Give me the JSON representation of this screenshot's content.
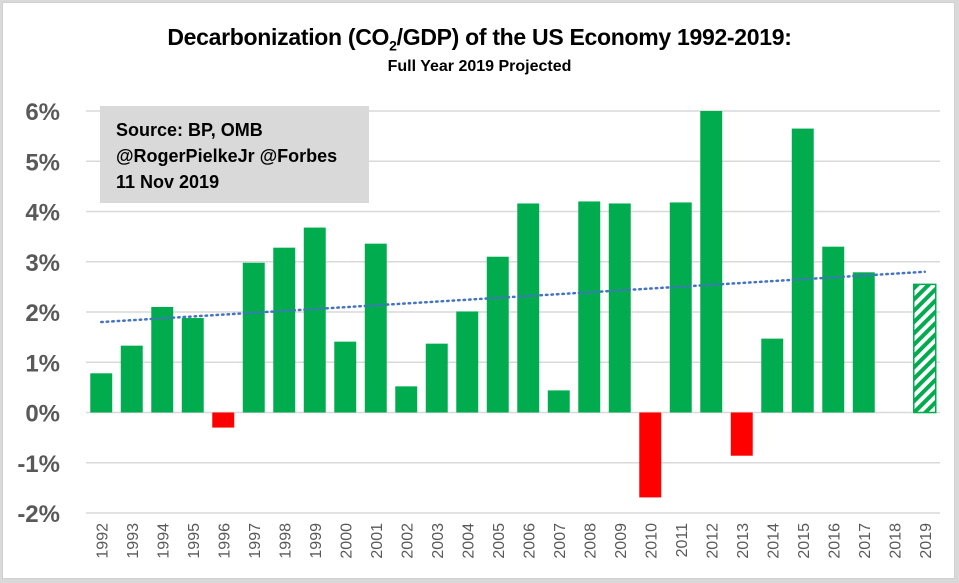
{
  "chart_data": {
    "type": "bar",
    "title": "Decarbonization (CO2/GDP) of the US Economy 1992-2019:",
    "title_parts": {
      "pre": "Decarbonization (CO",
      "sub": "2",
      "post": "/GDP) of the US Economy 1992-2019:"
    },
    "subtitle": "Full Year 2019 Projected",
    "xlabel": "",
    "ylabel": "",
    "ylim": [
      -2,
      6
    ],
    "yticks": [
      -2,
      -1,
      0,
      1,
      2,
      3,
      4,
      5,
      6
    ],
    "ytick_labels": [
      "-2%",
      "-1%",
      "0%",
      "1%",
      "2%",
      "3%",
      "4%",
      "5%",
      "6%"
    ],
    "grid": true,
    "categories": [
      "1992",
      "1993",
      "1994",
      "1995",
      "1996",
      "1997",
      "1998",
      "1999",
      "2000",
      "2001",
      "2002",
      "2003",
      "2004",
      "2005",
      "2006",
      "2007",
      "2008",
      "2009",
      "2010",
      "2011",
      "2012",
      "2013",
      "2014",
      "2015",
      "2016",
      "2017",
      "2018",
      "2019"
    ],
    "values": [
      0.78,
      1.33,
      2.1,
      1.88,
      -0.3,
      2.98,
      3.28,
      3.68,
      1.41,
      3.36,
      0.52,
      1.37,
      2.01,
      3.1,
      4.16,
      0.44,
      4.2,
      4.16,
      -1.69,
      4.18,
      6.0,
      -0.86,
      1.47,
      5.65,
      3.3,
      2.79,
      null,
      2.55
    ],
    "projected": [
      "2019"
    ],
    "trendline": {
      "type": "linear",
      "start": 1.8,
      "end": 2.8,
      "style": "dotted"
    },
    "colors": {
      "positive": "#00ac4e",
      "negative": "#ff0000",
      "trend": "#4472c4",
      "grid": "#d9d9d9",
      "tick_text": "#595959"
    },
    "annotation": {
      "lines": [
        "Source: BP, OMB",
        "@RogerPielkeJr @Forbes",
        "11 Nov 2019"
      ],
      "background": "#d9d9d9"
    }
  }
}
